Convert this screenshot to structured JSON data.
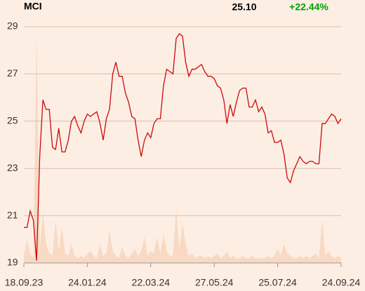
{
  "chart_data": {
    "type": "line",
    "title": "MCI",
    "last_price": "25.10",
    "change": "+22.44%",
    "change_color": "#00a000",
    "categories": [
      "18.09.23",
      null,
      null,
      null,
      null,
      null,
      null,
      null,
      null,
      null,
      null,
      null,
      null,
      null,
      null,
      null,
      null,
      null,
      null,
      null,
      "24.01.24",
      null,
      null,
      null,
      null,
      null,
      null,
      null,
      null,
      null,
      null,
      null,
      null,
      null,
      null,
      null,
      null,
      null,
      null,
      null,
      "22.03.24",
      null,
      null,
      null,
      null,
      null,
      null,
      null,
      null,
      null,
      null,
      null,
      null,
      null,
      null,
      null,
      null,
      null,
      null,
      null,
      "27.05.24",
      null,
      null,
      null,
      null,
      null,
      null,
      null,
      null,
      null,
      null,
      null,
      null,
      null,
      null,
      null,
      null,
      null,
      null,
      null,
      "25.07.24",
      null,
      null,
      null,
      null,
      null,
      null,
      null,
      null,
      null,
      null,
      null,
      null,
      null,
      null,
      null,
      null,
      null,
      null,
      null,
      "24.09.24"
    ],
    "series": [
      {
        "name": "Price",
        "color": "#cc0a0a",
        "values": [
          20.5,
          20.5,
          21.2,
          20.8,
          19.1,
          23.5,
          25.9,
          25.5,
          25.5,
          23.9,
          23.8,
          24.7,
          23.7,
          23.7,
          24.2,
          25.0,
          25.2,
          24.8,
          24.5,
          25.0,
          25.3,
          25.2,
          25.3,
          25.4,
          24.9,
          24.2,
          25.1,
          25.5,
          27.0,
          27.5,
          26.9,
          26.9,
          26.2,
          25.8,
          25.2,
          25.1,
          24.2,
          23.5,
          24.2,
          24.5,
          24.3,
          24.9,
          25.1,
          25.1,
          26.5,
          27.2,
          27.1,
          27.0,
          28.5,
          28.7,
          28.6,
          27.5,
          26.9,
          27.2,
          27.2,
          27.3,
          27.4,
          27.1,
          26.9,
          26.9,
          26.8,
          26.5,
          26.4,
          25.9,
          24.9,
          25.7,
          25.2,
          25.8,
          26.3,
          26.4,
          26.4,
          25.6,
          25.6,
          25.9,
          25.4,
          25.6,
          25.3,
          24.5,
          24.6,
          24.1,
          24.1,
          24.2,
          23.6,
          22.6,
          22.4,
          22.9,
          23.2,
          23.5,
          23.3,
          23.2,
          23.3,
          23.3,
          23.2,
          23.2,
          24.9,
          24.9,
          25.1,
          25.3,
          25.2,
          24.9,
          25.1
        ]
      },
      {
        "name": "Volume",
        "color": "#f8d9c3",
        "axis": "y2",
        "values": [
          3,
          10,
          4,
          2,
          98,
          5,
          22,
          8,
          4,
          3,
          18,
          5,
          15,
          4,
          3,
          8,
          3,
          2,
          3,
          2,
          4,
          5,
          3,
          2,
          8,
          3,
          4,
          14,
          5,
          3,
          2,
          7,
          3,
          2,
          4,
          6,
          3,
          5,
          11,
          3,
          5,
          4,
          11,
          4,
          12,
          5,
          3,
          3,
          23,
          6,
          17,
          8,
          3,
          4,
          2,
          3,
          3,
          2,
          3,
          2,
          3,
          4,
          2,
          3,
          5,
          2,
          3,
          2,
          2,
          3,
          2,
          2,
          3,
          2,
          2,
          2,
          2,
          3,
          2,
          3,
          6,
          3,
          8,
          4,
          3,
          2,
          2,
          3,
          2,
          3,
          2,
          3,
          4,
          2,
          18,
          3,
          5,
          3,
          2,
          3,
          2
        ]
      }
    ],
    "ylim": [
      19,
      29
    ],
    "yticks": [
      19,
      21,
      23,
      25,
      27,
      29
    ],
    "y2lim": [
      0,
      100
    ],
    "grid": true
  }
}
